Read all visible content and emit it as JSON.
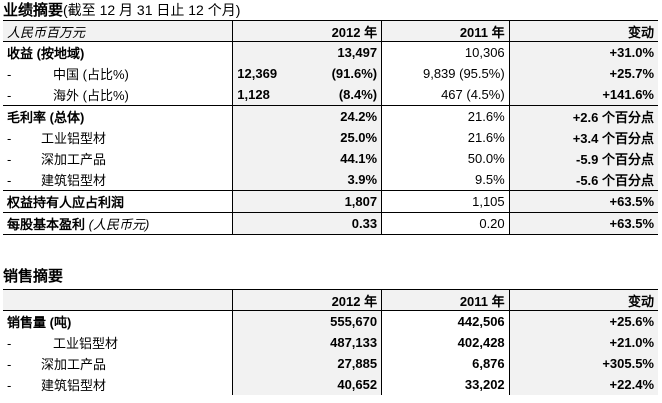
{
  "section1": {
    "title": "业绩摘要",
    "title_note": "(截至 12 月 31 日止 12 个月)",
    "header": {
      "unit": "人民币百万元",
      "y2012": "2012 年",
      "y2011": "2011 年",
      "change": "变动"
    },
    "rows": [
      {
        "label": "收益 (按地域)",
        "v2012": "13,497",
        "v2011": "10,306",
        "change": "+31.0%"
      },
      {
        "label": "中国 (占比%)",
        "v2012a": "12,369",
        "v2012b": "(91.6%)",
        "v2011": "9,839 (95.5%)",
        "change": "+25.7%"
      },
      {
        "label": "海外 (占比%)",
        "v2012a": "1,128",
        "v2012b": "(8.4%)",
        "v2011": "467 (4.5%)",
        "change": "+141.6%"
      },
      {
        "label": "毛利率 (总体)",
        "v2012": "24.2%",
        "v2011": "21.6%",
        "change": "+2.6 个百分点"
      },
      {
        "label": "工业铝型材",
        "v2012": "25.0%",
        "v2011": "21.6%",
        "change": "+3.4 个百分点"
      },
      {
        "label": "深加工产品",
        "v2012": "44.1%",
        "v2011": "50.0%",
        "change": "-5.9 个百分点"
      },
      {
        "label": "建筑铝型材",
        "v2012": "3.9%",
        "v2011": "9.5%",
        "change": "-5.6 个百分点"
      },
      {
        "label": "权益持有人应占利润",
        "v2012": "1,807",
        "v2011": "1,105",
        "change": "+63.5%"
      },
      {
        "label": "每股基本盈利",
        "label_note": "(人民币元)",
        "v2012": "0.33",
        "v2011": "0.20",
        "change": "+63.5%"
      }
    ]
  },
  "section2": {
    "title": "销售摘要",
    "header": {
      "y2012": "2012 年",
      "y2011": "2011 年",
      "change": "变动"
    },
    "rows": [
      {
        "label": "销售量 (吨)",
        "v2012": "555,670",
        "v2011": "442,506",
        "change": "+25.6%"
      },
      {
        "label": "工业铝型材",
        "v2012": "487,133",
        "v2011": "402,428",
        "change": "+21.0%"
      },
      {
        "label": "深加工产品",
        "v2012": "27,885",
        "v2011": "6,876",
        "change": "+305.5%"
      },
      {
        "label": "建筑铝型材",
        "v2012": "40,652",
        "v2011": "33,202",
        "change": "+22.4%"
      }
    ]
  },
  "symbols": {
    "dash": "-"
  }
}
